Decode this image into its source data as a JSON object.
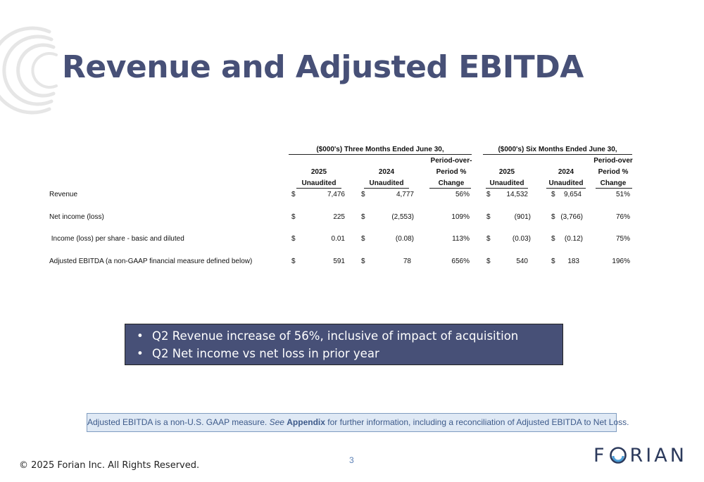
{
  "title": "Revenue and Adjusted EBITDA",
  "table": {
    "group_headers": {
      "three_months": "($000's) Three Months Ended June 30,",
      "six_months": "($000's) Six Months Ended June 30,"
    },
    "columns": {
      "tm_2025_year": "2025",
      "tm_2025_sub": "Unaudited",
      "tm_2024_year": "2024",
      "tm_2024_sub": "Unaudited",
      "tm_change_line1": "Period-over-",
      "tm_change_line2": "Period %",
      "tm_change_line3": "Change",
      "sm_2025_year": "2025",
      "sm_2025_sub": "Unaudited",
      "sm_2024_year": "2024",
      "sm_2024_sub": "Unaudited",
      "sm_change_line1": "Period-over",
      "sm_change_line2": "Period %",
      "sm_change_line3": "Change"
    },
    "currency": "$",
    "rows": [
      {
        "label": "Revenue",
        "tm_2025": "7,476",
        "tm_2024": "4,777",
        "tm_change": "56%",
        "sm_2025": "14,532",
        "sm_2024": "9,654",
        "sm_change": "51%"
      },
      {
        "label": "Net income (loss)",
        "tm_2025": "225",
        "tm_2024": "(2,553)",
        "tm_change": "109%",
        "sm_2025": "(901)",
        "sm_2024": "(3,766)",
        "sm_change": "76%"
      },
      {
        "label": " Income (loss) per share - basic and diluted",
        "tm_2025": "0.01",
        "tm_2024": "(0.08)",
        "tm_change": "113%",
        "sm_2025": "(0.03)",
        "sm_2024": "(0.12)",
        "sm_change": "75%"
      },
      {
        "label": "Adjusted EBITDA (a non-GAAP financial measure defined below)",
        "tm_2025": "591",
        "tm_2024": "78",
        "tm_change": "656%",
        "sm_2025": "540",
        "sm_2024": "183",
        "sm_change": "196%"
      }
    ]
  },
  "callout": {
    "bullet_glyph": "•",
    "items": [
      "Q2 Revenue increase of 56%, inclusive of impact of acquisition",
      "Q2 Net income vs net loss in prior year"
    ]
  },
  "note": {
    "part1": "Adjusted EBITDA is a non-U.S. GAAP measure. ",
    "see": "See",
    "space": " ",
    "appendix": "Appendix",
    "part2": " for further information, including a reconciliation of Adjusted EBITDA to Net Loss."
  },
  "footer": {
    "page_number": "3",
    "copyright": "© 2025 Forian Inc.  All Rights Reserved.",
    "logo_left": "F",
    "logo_right": "RIAN"
  },
  "colors": {
    "title": "#475077",
    "callout_bg": "#475077",
    "note_bg": "#dfe9f5",
    "note_text": "#3d5a8a"
  }
}
